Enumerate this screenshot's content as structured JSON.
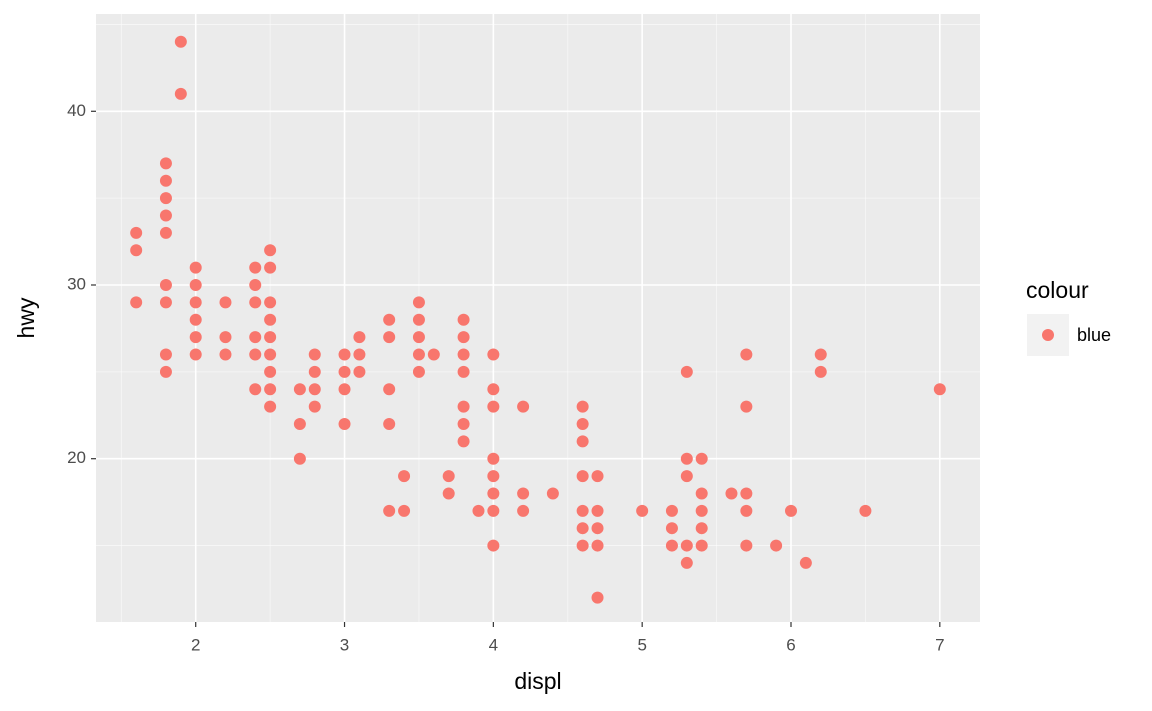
{
  "chart_data": {
    "type": "scatter",
    "x_label": "displ",
    "y_label": "hwy",
    "legend_title": "colour",
    "legend": "right",
    "series": [
      {
        "name": "blue",
        "color": "#F8766D",
        "x": [
          1.6,
          1.6,
          1.6,
          1.8,
          1.8,
          1.8,
          1.8,
          1.8,
          1.8,
          1.8,
          1.8,
          1.8,
          1.9,
          1.9,
          2.0,
          2.0,
          2.0,
          2.0,
          2.0,
          2.0,
          2.2,
          2.2,
          2.2,
          2.4,
          2.4,
          2.4,
          2.4,
          2.4,
          2.4,
          2.5,
          2.5,
          2.5,
          2.5,
          2.5,
          2.5,
          2.5,
          2.5,
          2.5,
          2.7,
          2.7,
          2.7,
          2.8,
          2.8,
          2.8,
          2.8,
          3.0,
          3.0,
          3.0,
          3.0,
          3.1,
          3.1,
          3.1,
          3.3,
          3.3,
          3.3,
          3.3,
          3.3,
          3.4,
          3.4,
          3.5,
          3.5,
          3.5,
          3.5,
          3.5,
          3.6,
          3.7,
          3.7,
          3.8,
          3.8,
          3.8,
          3.8,
          3.8,
          3.8,
          3.8,
          3.9,
          4.0,
          4.0,
          4.0,
          4.0,
          4.0,
          4.0,
          4.0,
          4.0,
          4.2,
          4.2,
          4.2,
          4.4,
          4.6,
          4.6,
          4.6,
          4.6,
          4.6,
          4.6,
          4.6,
          4.7,
          4.7,
          4.7,
          4.7,
          4.7,
          5.0,
          5.2,
          5.2,
          5.2,
          5.3,
          5.3,
          5.3,
          5.3,
          5.3,
          5.4,
          5.4,
          5.4,
          5.4,
          5.4,
          5.6,
          5.7,
          5.7,
          5.7,
          5.7,
          5.7,
          5.9,
          6.0,
          6.1,
          6.2,
          6.2,
          6.5,
          7.0
        ],
        "values": [
          33,
          32,
          29,
          37,
          36,
          35,
          34,
          33,
          30,
          29,
          26,
          25,
          44,
          41,
          31,
          30,
          29,
          28,
          27,
          26,
          29,
          27,
          26,
          31,
          30,
          29,
          27,
          26,
          24,
          32,
          31,
          29,
          28,
          27,
          26,
          25,
          24,
          23,
          24,
          22,
          20,
          26,
          25,
          24,
          23,
          26,
          25,
          24,
          22,
          27,
          26,
          25,
          28,
          27,
          24,
          22,
          17,
          19,
          17,
          29,
          28,
          27,
          26,
          25,
          26,
          19,
          18,
          28,
          27,
          26,
          25,
          23,
          22,
          21,
          17,
          26,
          24,
          23,
          20,
          19,
          18,
          17,
          15,
          23,
          18,
          17,
          18,
          23,
          22,
          21,
          19,
          17,
          16,
          15,
          19,
          17,
          16,
          15,
          12,
          17,
          17,
          16,
          15,
          25,
          20,
          19,
          15,
          14,
          20,
          18,
          17,
          16,
          15,
          18,
          26,
          23,
          18,
          17,
          15,
          15,
          17,
          14,
          26,
          25,
          17,
          24
        ]
      }
    ],
    "xlim": [
      1.33,
      7.27
    ],
    "ylim": [
      10.6,
      45.6
    ],
    "xticks": [
      2,
      3,
      4,
      5,
      6,
      7
    ],
    "yticks": [
      20,
      30,
      40
    ],
    "xminor": [
      1.5,
      2.5,
      3.5,
      4.5,
      5.5,
      6.5
    ],
    "yminor": [
      15,
      25,
      35,
      45
    ],
    "grid": true
  }
}
